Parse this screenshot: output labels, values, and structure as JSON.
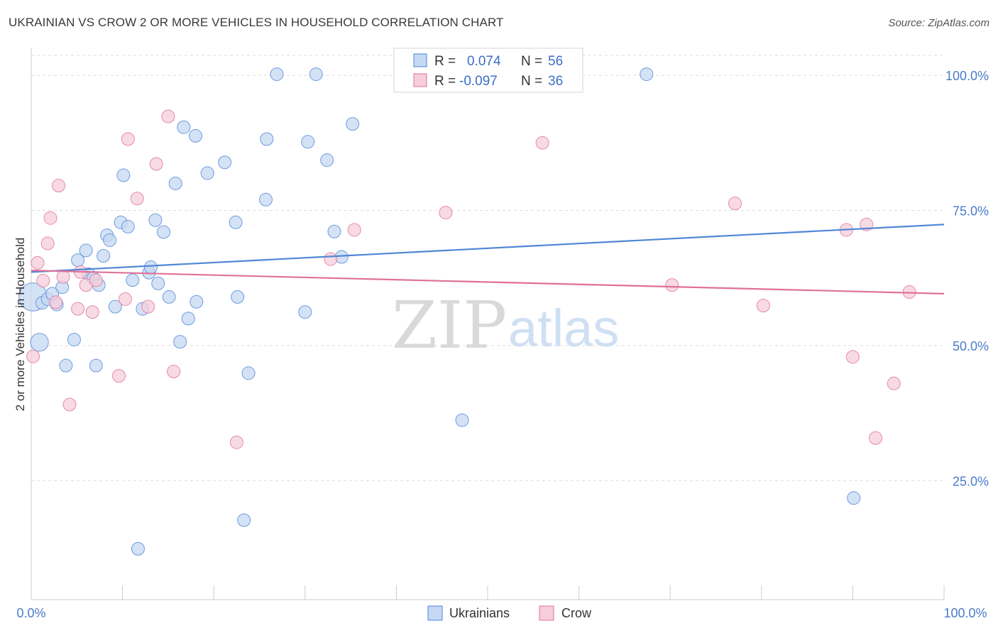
{
  "title": "UKRAINIAN VS CROW 2 OR MORE VEHICLES IN HOUSEHOLD CORRELATION CHART",
  "source": "Source: ZipAtlas.com",
  "watermark": {
    "zip": "ZIP",
    "atlas": "atlas"
  },
  "colors": {
    "blue": "#4f86d6",
    "blue_fill": "#c5d8f3",
    "pink": "#e07198",
    "pink_fill": "#f6cddb",
    "grid": "#dddddd",
    "axis_text": "#4a7cc9"
  },
  "legend": {
    "r_label": "R =",
    "n_label": "N =",
    "rows": [
      {
        "r": "0.074",
        "n": "56"
      },
      {
        "r": "-0.097",
        "n": "36"
      }
    ]
  },
  "chart_data": {
    "type": "scatter",
    "title": "UKRAINIAN VS CROW 2 OR MORE VEHICLES IN HOUSEHOLD CORRELATION CHART",
    "xlabel": "",
    "ylabel": "2 or more Vehicles in Household",
    "xlim": [
      0,
      100
    ],
    "ylim": [
      3,
      105
    ],
    "x_ticks": [
      "0.0%",
      "100.0%"
    ],
    "y_ticks": [
      {
        "v": 100,
        "label": "100.0%"
      },
      {
        "v": 75,
        "label": "75.0%"
      },
      {
        "v": 50,
        "label": "50.0%"
      },
      {
        "v": 25,
        "label": "25.0%"
      }
    ],
    "grid": true,
    "legend_position": "bottom-center",
    "series": [
      {
        "name": "Ukrainians",
        "color": "#4f86d6",
        "trend": {
          "x0": 0,
          "y0": 63.6,
          "x1": 100,
          "y1": 72.4
        },
        "points": [
          [
            0.2,
            59.0,
            2.2
          ],
          [
            0.9,
            50.6,
            1.4
          ],
          [
            1.2,
            57.9,
            1.0
          ],
          [
            1.8,
            58.6,
            1.0
          ],
          [
            2.3,
            59.6,
            1.0
          ],
          [
            2.8,
            57.6,
            1.0
          ],
          [
            3.4,
            60.8,
            1.0
          ],
          [
            3.8,
            46.3,
            1.0
          ],
          [
            4.7,
            51.1,
            1.0
          ],
          [
            5.1,
            65.8,
            1.0
          ],
          [
            6.0,
            67.6,
            1.0
          ],
          [
            6.3,
            63.2,
            1.0
          ],
          [
            6.8,
            62.5,
            1.0
          ],
          [
            7.1,
            46.3,
            1.0
          ],
          [
            7.4,
            61.2,
            1.0
          ],
          [
            7.9,
            66.6,
            1.0
          ],
          [
            8.3,
            70.4,
            1.0
          ],
          [
            8.6,
            69.5,
            1.0
          ],
          [
            9.2,
            57.2,
            1.0
          ],
          [
            9.8,
            72.8,
            1.0
          ],
          [
            10.1,
            81.5,
            1.0
          ],
          [
            10.6,
            72.0,
            1.0
          ],
          [
            11.1,
            62.1,
            1.0
          ],
          [
            11.7,
            12.4,
            1.0
          ],
          [
            12.2,
            56.8,
            1.0
          ],
          [
            12.9,
            63.5,
            1.0
          ],
          [
            13.1,
            64.5,
            1.0
          ],
          [
            13.6,
            73.2,
            1.0
          ],
          [
            13.9,
            61.5,
            1.0
          ],
          [
            14.5,
            71.0,
            1.0
          ],
          [
            15.1,
            59.0,
            1.0
          ],
          [
            15.8,
            80.0,
            1.0
          ],
          [
            16.3,
            50.7,
            1.0
          ],
          [
            16.7,
            90.4,
            1.0
          ],
          [
            17.2,
            55.0,
            1.0
          ],
          [
            18.0,
            88.8,
            1.0
          ],
          [
            18.1,
            58.1,
            1.0
          ],
          [
            19.3,
            81.9,
            1.0
          ],
          [
            21.2,
            83.9,
            1.0
          ],
          [
            22.4,
            72.8,
            1.0
          ],
          [
            22.6,
            59.0,
            1.0
          ],
          [
            23.3,
            17.7,
            1.0
          ],
          [
            23.8,
            44.9,
            1.0
          ],
          [
            25.7,
            77.0,
            1.0
          ],
          [
            25.8,
            88.2,
            1.0
          ],
          [
            26.9,
            100.2,
            1.0
          ],
          [
            30.0,
            56.2,
            1.0
          ],
          [
            30.3,
            87.7,
            1.0
          ],
          [
            31.2,
            100.2,
            1.0
          ],
          [
            32.4,
            84.3,
            1.0
          ],
          [
            33.2,
            71.1,
            1.0
          ],
          [
            34.0,
            66.4,
            1.0
          ],
          [
            35.2,
            91.0,
            1.0
          ],
          [
            47.2,
            36.2,
            1.0
          ],
          [
            67.4,
            100.2,
            1.0
          ],
          [
            90.1,
            21.8,
            1.0
          ]
        ]
      },
      {
        "name": "Crow",
        "color": "#e07198",
        "trend": {
          "x0": 0,
          "y0": 63.9,
          "x1": 100,
          "y1": 59.6
        },
        "points": [
          [
            0.2,
            48.0,
            1.0
          ],
          [
            0.7,
            65.3,
            1.0
          ],
          [
            1.3,
            62.0,
            1.0
          ],
          [
            1.8,
            68.9,
            1.0
          ],
          [
            2.1,
            73.6,
            1.0
          ],
          [
            2.7,
            58.0,
            1.0
          ],
          [
            3.0,
            79.6,
            1.0
          ],
          [
            3.5,
            62.7,
            1.0
          ],
          [
            4.2,
            39.1,
            1.0
          ],
          [
            5.1,
            56.8,
            1.0
          ],
          [
            5.4,
            63.6,
            1.0
          ],
          [
            6.0,
            61.2,
            1.0
          ],
          [
            6.7,
            56.2,
            1.0
          ],
          [
            7.1,
            62.1,
            1.0
          ],
          [
            9.6,
            44.4,
            1.0
          ],
          [
            10.3,
            58.6,
            1.0
          ],
          [
            10.6,
            88.2,
            1.0
          ],
          [
            11.6,
            77.2,
            1.0
          ],
          [
            12.8,
            57.2,
            1.0
          ],
          [
            13.7,
            83.6,
            1.0
          ],
          [
            15.0,
            92.4,
            1.0
          ],
          [
            15.6,
            45.2,
            1.0
          ],
          [
            22.5,
            32.1,
            1.0
          ],
          [
            32.8,
            66.0,
            1.0
          ],
          [
            35.4,
            71.4,
            1.0
          ],
          [
            45.4,
            74.6,
            1.0
          ],
          [
            56.0,
            87.5,
            1.0
          ],
          [
            70.2,
            61.2,
            1.0
          ],
          [
            77.1,
            76.3,
            1.0
          ],
          [
            80.2,
            57.4,
            1.0
          ],
          [
            89.3,
            71.4,
            1.0
          ],
          [
            90.0,
            47.9,
            1.0
          ],
          [
            91.5,
            72.4,
            1.0
          ],
          [
            92.5,
            32.9,
            1.0
          ],
          [
            94.5,
            43.0,
            1.0
          ],
          [
            96.2,
            59.9,
            1.0
          ]
        ]
      }
    ]
  }
}
